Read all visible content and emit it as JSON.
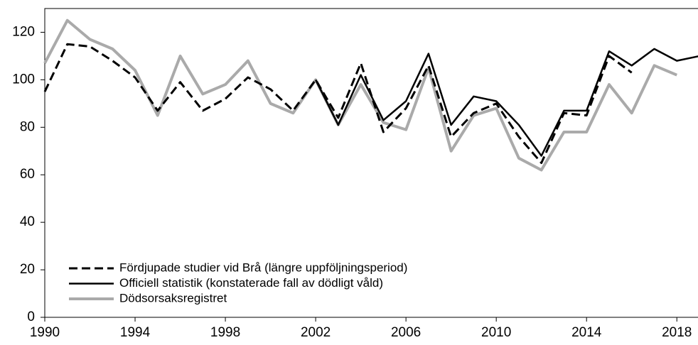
{
  "chart_data": {
    "type": "line",
    "x": [
      1990,
      1991,
      1992,
      1993,
      1994,
      1995,
      1996,
      1997,
      1998,
      1999,
      2000,
      2001,
      2002,
      2003,
      2004,
      2005,
      2006,
      2007,
      2008,
      2009,
      2010,
      2011,
      2012,
      2013,
      2014,
      2015,
      2016,
      2017,
      2018,
      2019
    ],
    "series": [
      {
        "name": "Fördjupade studier vid Brå (längre uppföljningsperiod)",
        "color": "#000000",
        "dash": true,
        "values": [
          95,
          115,
          114,
          108,
          101,
          87,
          99,
          87,
          92,
          101,
          96,
          87,
          100,
          84,
          107,
          78,
          88,
          106,
          76,
          86,
          90,
          76,
          65,
          86,
          85,
          110,
          103,
          null,
          null,
          null
        ]
      },
      {
        "name": "Officiell statistik (konstaterade fall av dödligt våld)",
        "color": "#000000",
        "dash": false,
        "values": [
          null,
          null,
          null,
          null,
          null,
          null,
          null,
          null,
          null,
          null,
          null,
          null,
          100,
          81,
          102,
          83,
          91,
          111,
          81,
          93,
          91,
          81,
          68,
          87,
          87,
          112,
          106,
          113,
          108,
          110
        ]
      },
      {
        "name": "Dödsorsaksregistret",
        "color": "#aaaaaa",
        "dash": false,
        "values": [
          107,
          125,
          117,
          113,
          104,
          85,
          110,
          94,
          98,
          108,
          90,
          86,
          100,
          81,
          98,
          82,
          79,
          105,
          70,
          85,
          88,
          67,
          62,
          78,
          78,
          98,
          86,
          106,
          102,
          null
        ]
      }
    ],
    "xlim": [
      1990,
      2019
    ],
    "xticks": [
      1990,
      1994,
      1998,
      2002,
      2006,
      2010,
      2014,
      2018
    ],
    "ylim": [
      0,
      130
    ],
    "yticks": [
      0,
      20,
      40,
      60,
      80,
      100,
      120
    ]
  }
}
